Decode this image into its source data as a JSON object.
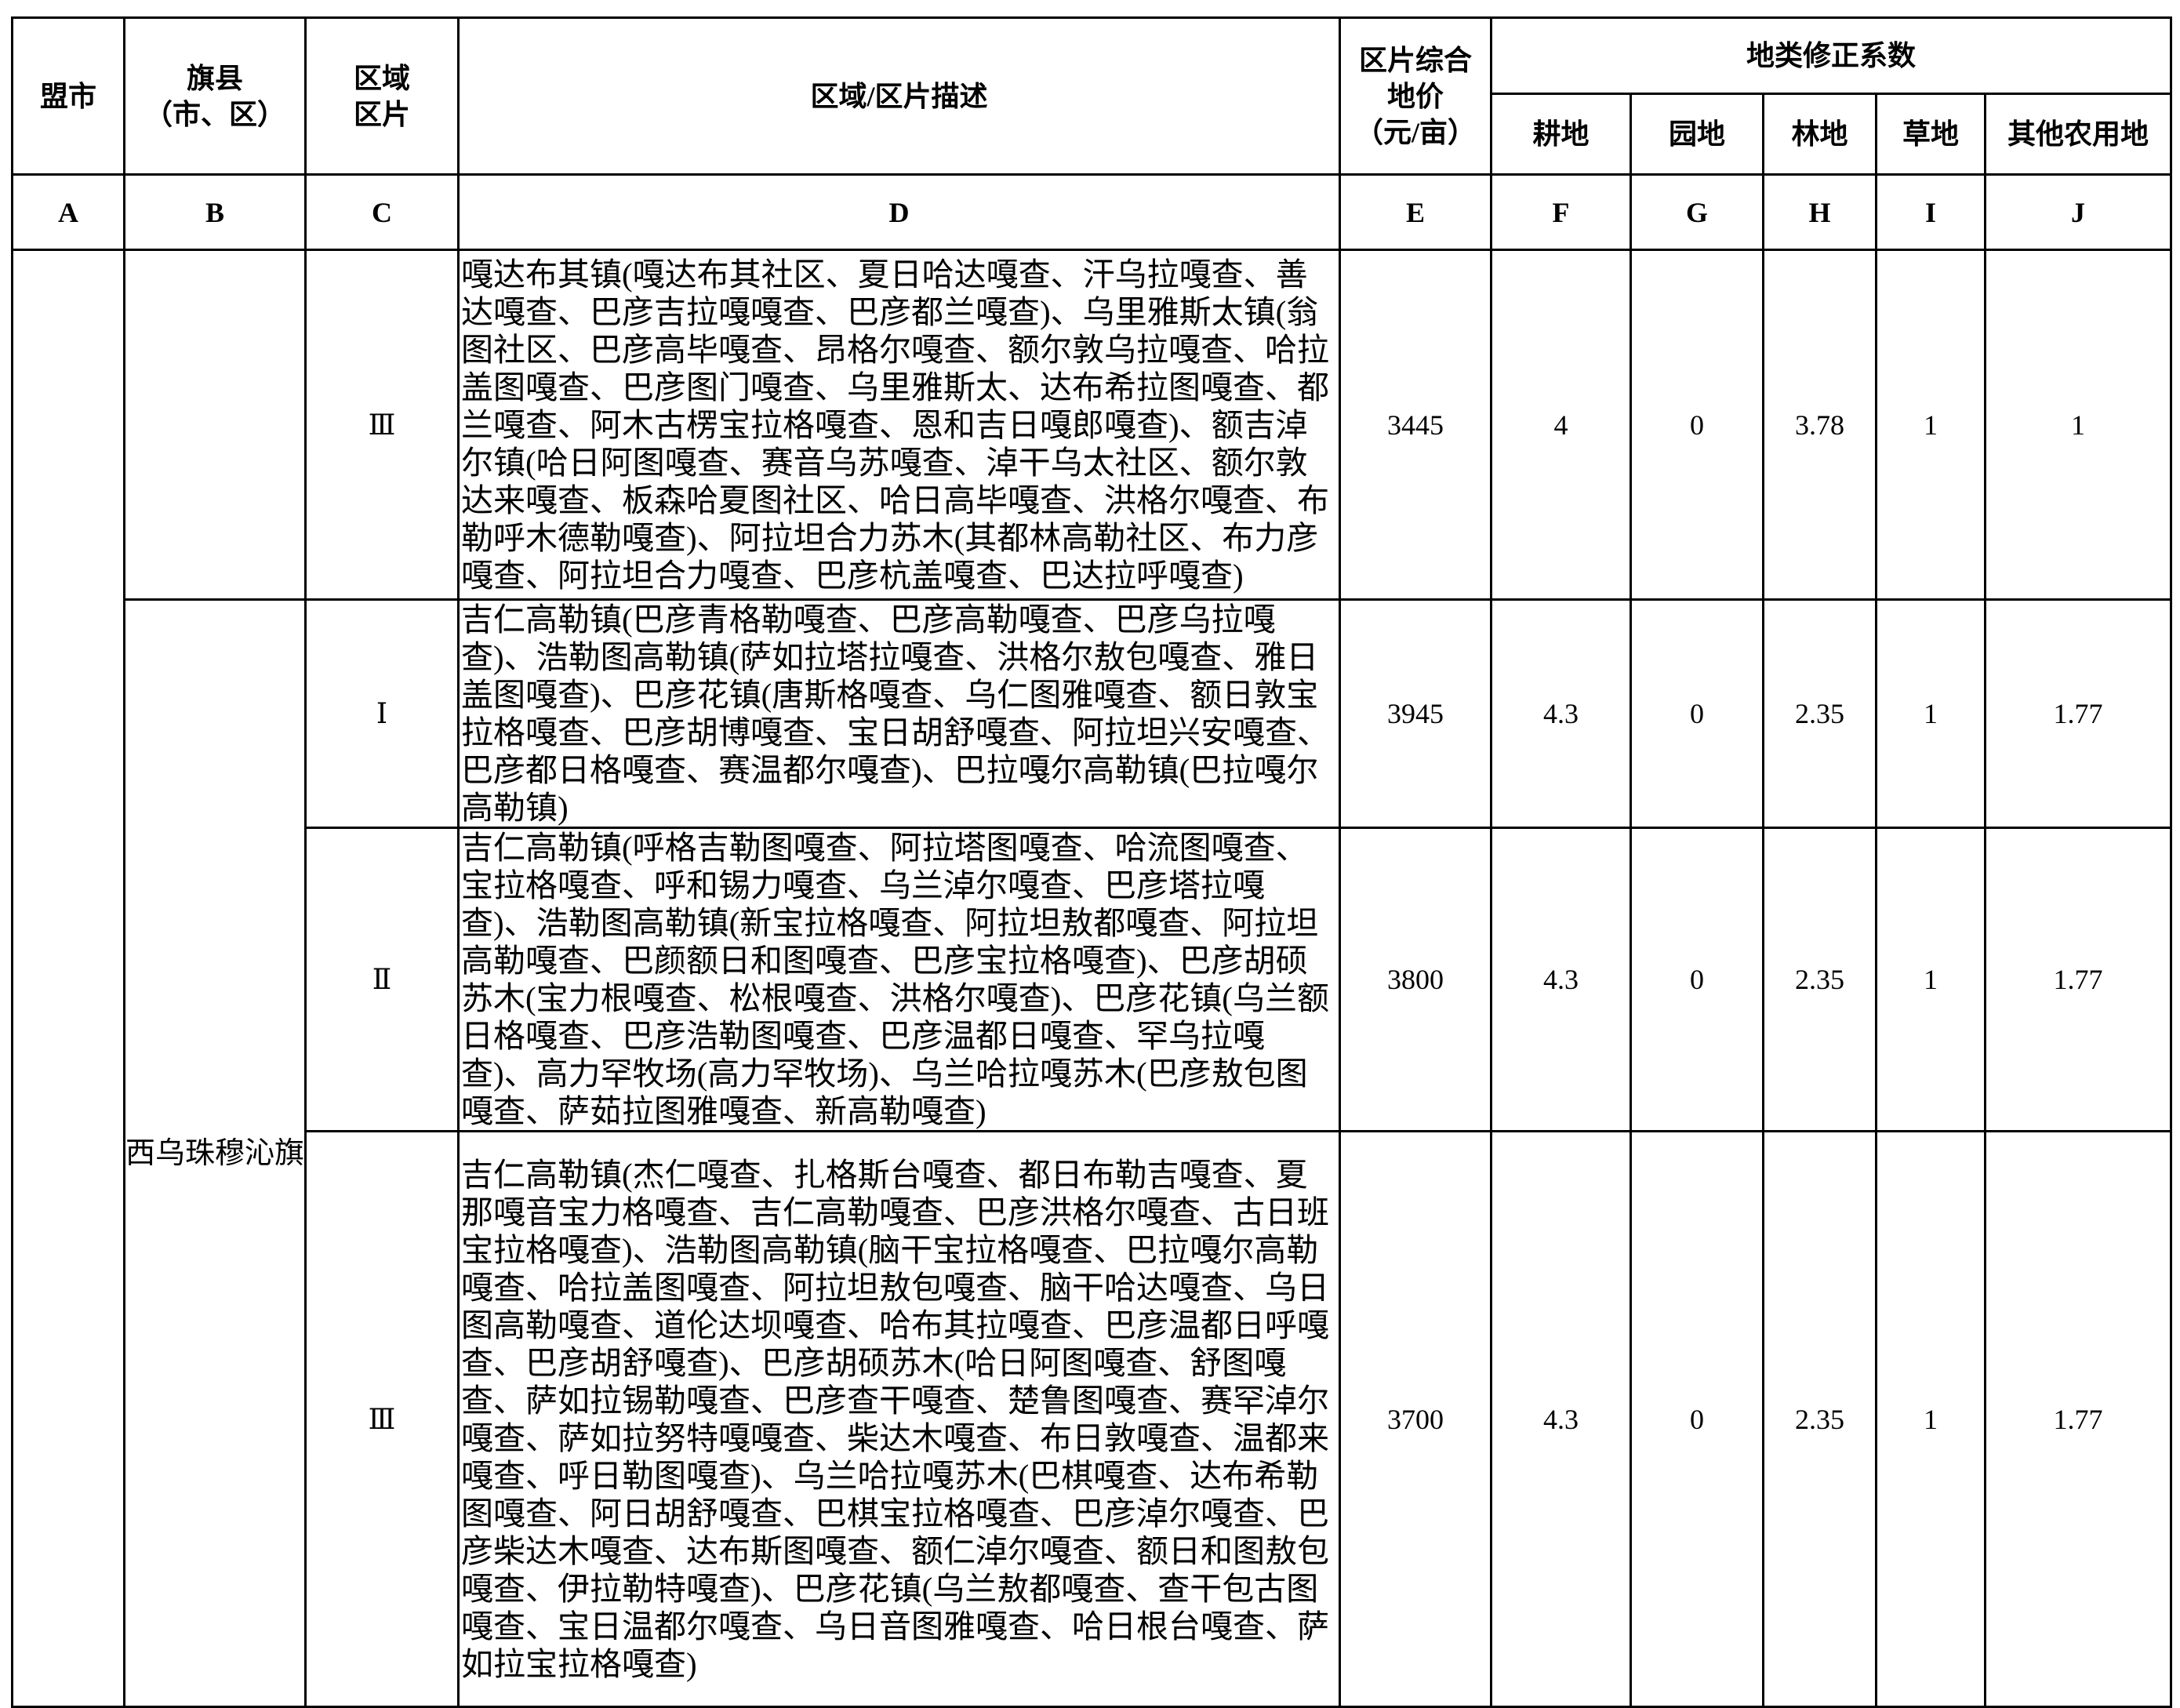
{
  "header": {
    "league": "盟市",
    "county": "旗县\n（市、区）",
    "zone": "区域\n区片",
    "description": "区域/区片描述",
    "price": "区片综合\n地价\n（元/亩）",
    "coef_group": "地类修正系数",
    "coef_cols": [
      "耕地",
      "园地",
      "林地",
      "草地",
      "其他农用地"
    ]
  },
  "letters": [
    "A",
    "B",
    "C",
    "D",
    "E",
    "F",
    "G",
    "H",
    "I",
    "J"
  ],
  "rows": [
    {
      "league": "",
      "county": "",
      "zone": "Ⅲ",
      "description": "嘎达布其镇(嘎达布其社区、夏日哈达嘎查、汗乌拉嘎查、善达嘎查、巴彦吉拉嘎嘎查、巴彦都兰嘎查)、乌里雅斯太镇(翁图社区、巴彦高毕嘎查、昂格尔嘎查、额尔敦乌拉嘎查、哈拉盖图嘎查、巴彦图门嘎查、乌里雅斯太、达布希拉图嘎查、都兰嘎查、阿木古楞宝拉格嘎查、恩和吉日嘎郎嘎查)、额吉淖尔镇(哈日阿图嘎查、赛音乌苏嘎查、淖干乌太社区、额尔敦达来嘎查、板森哈夏图社区、哈日高毕嘎查、洪格尔嘎查、布勒呼木德勒嘎查)、阿拉坦合力苏木(其都林高勒社区、布力彦嘎查、阿拉坦合力嘎查、巴彦杭盖嘎查、巴达拉呼嘎查)",
      "price": "3445",
      "coef": [
        "4",
        "0",
        "3.78",
        "1",
        "1"
      ]
    },
    {
      "county": "西乌珠穆沁旗",
      "zone": "Ⅰ",
      "description": "吉仁高勒镇(巴彦青格勒嘎查、巴彦高勒嘎查、巴彦乌拉嘎查)、浩勒图高勒镇(萨如拉塔拉嘎查、洪格尔敖包嘎查、雅日盖图嘎查)、巴彦花镇(唐斯格嘎查、乌仁图雅嘎查、额日敦宝拉格嘎查、巴彦胡博嘎查、宝日胡舒嘎查、阿拉坦兴安嘎查、巴彦都日格嘎查、赛温都尔嘎查)、巴拉嘎尔高勒镇(巴拉嘎尔高勒镇)",
      "price": "3945",
      "coef": [
        "4.3",
        "0",
        "2.35",
        "1",
        "1.77"
      ]
    },
    {
      "zone": "Ⅱ",
      "description": "吉仁高勒镇(呼格吉勒图嘎查、阿拉塔图嘎查、哈流图嘎查、宝拉格嘎查、呼和锡力嘎查、乌兰淖尔嘎查、巴彦塔拉嘎查)、浩勒图高勒镇(新宝拉格嘎查、阿拉坦敖都嘎查、阿拉坦高勒嘎查、巴颜额日和图嘎查、巴彦宝拉格嘎查)、巴彦胡硕苏木(宝力根嘎查、松根嘎查、洪格尔嘎查)、巴彦花镇(乌兰额日格嘎查、巴彦浩勒图嘎查、巴彦温都日嘎查、罕乌拉嘎查)、高力罕牧场(高力罕牧场)、乌兰哈拉嘎苏木(巴彦敖包图嘎查、萨茹拉图雅嘎查、新高勒嘎查)",
      "price": "3800",
      "coef": [
        "4.3",
        "0",
        "2.35",
        "1",
        "1.77"
      ]
    },
    {
      "zone": "Ⅲ",
      "description": "吉仁高勒镇(杰仁嘎查、扎格斯台嘎查、都日布勒吉嘎查、夏那嘎音宝力格嘎查、吉仁高勒嘎查、巴彦洪格尔嘎查、古日班宝拉格嘎查)、浩勒图高勒镇(脑干宝拉格嘎查、巴拉嘎尔高勒嘎查、哈拉盖图嘎查、阿拉坦敖包嘎查、脑干哈达嘎查、乌日图高勒嘎查、道伦达坝嘎查、哈布其拉嘎查、巴彦温都日呼嘎查、巴彦胡舒嘎查)、巴彦胡硕苏木(哈日阿图嘎查、舒图嘎查、萨如拉锡勒嘎查、巴彦查干嘎查、楚鲁图嘎查、赛罕淖尔嘎查、萨如拉努特嘎嘎查、柴达木嘎查、布日敦嘎查、温都来嘎查、呼日勒图嘎查)、乌兰哈拉嘎苏木(巴棋嘎查、达布希勒图嘎查、阿日胡舒嘎查、巴棋宝拉格嘎查、巴彦淖尔嘎查、巴彦柴达木嘎查、达布斯图嘎查、额仁淖尔嘎查、额日和图敖包嘎查、伊拉勒特嘎查)、巴彦花镇(乌兰敖都嘎查、查干包古图嘎查、宝日温都尔嘎查、乌日音图雅嘎查、哈日根台嘎查、萨如拉宝拉格嘎查)",
      "price": "3700",
      "coef": [
        "4.3",
        "0",
        "2.35",
        "1",
        "1.77"
      ]
    }
  ]
}
